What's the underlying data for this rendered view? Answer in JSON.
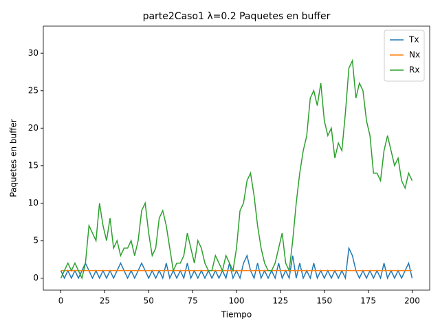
{
  "chart_data": {
    "type": "line",
    "title": "parte2Caso1 λ=0.2 Paquetes en buffer",
    "xlabel": "Tiempo",
    "ylabel": "Paquetes en buffer",
    "x": [
      0,
      2,
      4,
      6,
      8,
      10,
      12,
      14,
      16,
      18,
      20,
      22,
      24,
      26,
      28,
      30,
      32,
      34,
      36,
      38,
      40,
      42,
      44,
      46,
      48,
      50,
      52,
      54,
      56,
      58,
      60,
      62,
      64,
      66,
      68,
      70,
      72,
      74,
      76,
      78,
      80,
      82,
      84,
      86,
      88,
      90,
      92,
      94,
      96,
      98,
      100,
      102,
      104,
      106,
      108,
      110,
      112,
      114,
      116,
      118,
      120,
      122,
      124,
      126,
      128,
      130,
      132,
      134,
      136,
      138,
      140,
      142,
      144,
      146,
      148,
      150,
      152,
      154,
      156,
      158,
      160,
      162,
      164,
      166,
      168,
      170,
      172,
      174,
      176,
      178,
      180,
      182,
      184,
      186,
      188,
      190,
      192,
      194,
      196,
      198,
      200
    ],
    "series": [
      {
        "name": "Tx",
        "color": "#1f77b4",
        "values": [
          1,
          0,
          1,
          0,
          1,
          0,
          1,
          2,
          1,
          0,
          1,
          0,
          1,
          0,
          1,
          0,
          1,
          2,
          1,
          0,
          1,
          0,
          1,
          2,
          1,
          0,
          1,
          0,
          1,
          0,
          2,
          0,
          1,
          0,
          1,
          0,
          2,
          0,
          1,
          0,
          1,
          0,
          1,
          0,
          1,
          0,
          1,
          0,
          2,
          0,
          1,
          0,
          2,
          3,
          1,
          0,
          2,
          0,
          1,
          0,
          1,
          0,
          2,
          0,
          1,
          0,
          3,
          0,
          2,
          0,
          1,
          0,
          2,
          0,
          1,
          0,
          1,
          0,
          1,
          0,
          1,
          0,
          4,
          3,
          1,
          0,
          1,
          0,
          1,
          0,
          1,
          0,
          2,
          0,
          1,
          0,
          1,
          0,
          1,
          2,
          0
        ]
      },
      {
        "name": "Nx",
        "color": "#ff7f0e",
        "x": [
          0,
          200
        ],
        "values": [
          1,
          1
        ]
      },
      {
        "name": "Rx",
        "color": "#2ca02c",
        "values": [
          0,
          1,
          2,
          1,
          2,
          1,
          0,
          2,
          7,
          6,
          5,
          10,
          7,
          5,
          8,
          4,
          5,
          3,
          4,
          4,
          5,
          3,
          5,
          9,
          10,
          6,
          3,
          4,
          8,
          9,
          7,
          4,
          1,
          2,
          2,
          3,
          6,
          4,
          2,
          5,
          4,
          2,
          1,
          1,
          3,
          2,
          1,
          3,
          2,
          1,
          4,
          9,
          10,
          13,
          14,
          11,
          7,
          4,
          2,
          1,
          1,
          2,
          4,
          6,
          2,
          1,
          5,
          10,
          14,
          17,
          19,
          24,
          25,
          23,
          26,
          21,
          19,
          20,
          16,
          18,
          17,
          22,
          28,
          29,
          24,
          26,
          25,
          21,
          19,
          14,
          14,
          13,
          17,
          19,
          17,
          15,
          16,
          13,
          12,
          14,
          13
        ]
      }
    ],
    "xlim": [
      -10,
      210
    ],
    "xticks": [
      0,
      25,
      50,
      75,
      100,
      125,
      150,
      175,
      200
    ],
    "ylim": [
      -1.6,
      33.6
    ],
    "yticks": [
      0,
      5,
      10,
      15,
      20,
      25,
      30
    ],
    "legend": "upper right"
  }
}
